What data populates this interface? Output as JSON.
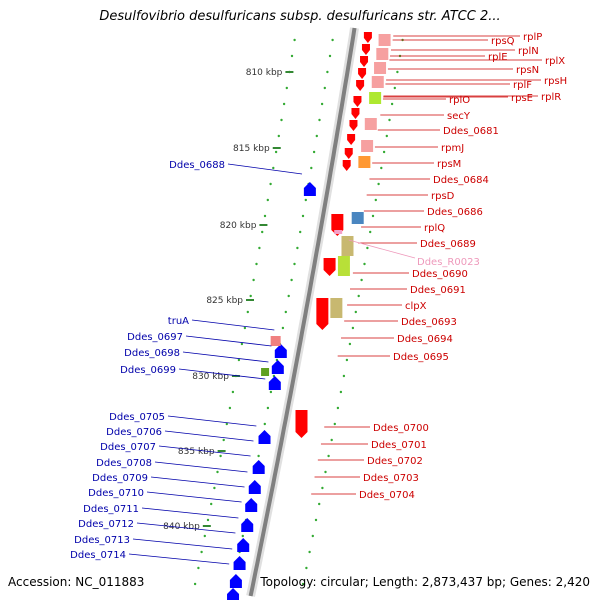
{
  "title": "Desulfovibrio desulfuricans subsp. desulfuricans str. ATCC 2...",
  "accession": "Accession: NC_011883",
  "topology": "Topology: circular; Length: 2,873,437 bp; Genes: 2,420",
  "colors": {
    "forward_gene": "#ff0000",
    "reverse_gene": "#0000ff",
    "forward_label": "#cc0000",
    "reverse_label": "#0000aa",
    "rna_label": "#ee99bb",
    "backbone": "#808080",
    "scale_tick": "#338833",
    "scale_dot": "#33aa33"
  },
  "scale_labels": [
    "810 kbp",
    "815 kbp",
    "820 kbp",
    "825 kbp",
    "830 kbp",
    "835 kbp",
    "840 kbp"
  ],
  "forward_labels": [
    "rpsQ",
    "rplP",
    "rplN",
    "rplE",
    "rplX",
    "rpsN",
    "rpsH",
    "rplF",
    "rpsE",
    "rplR",
    "rplO",
    "secY",
    "Ddes_0681",
    "rpmJ",
    "rpsM",
    "Ddes_0684",
    "rpsD",
    "Ddes_0686",
    "rplQ",
    "Ddes_0689",
    "Ddes_0690",
    "Ddes_0691",
    "clpX",
    "Ddes_0693",
    "Ddes_0694",
    "Ddes_0695",
    "Ddes_0700",
    "Ddes_0701",
    "Ddes_0702",
    "Ddes_0703",
    "Ddes_0704"
  ],
  "rna_labels": [
    "Ddes_R0023"
  ],
  "reverse_labels": [
    "Ddes_0688",
    "truA",
    "Ddes_0697",
    "Ddes_0698",
    "Ddes_0699",
    "Ddes_0705",
    "Ddes_0706",
    "Ddes_0707",
    "Ddes_0708",
    "Ddes_0709",
    "Ddes_0710",
    "Ddes_0711",
    "Ddes_0712",
    "Ddes_0713",
    "Ddes_0714"
  ]
}
